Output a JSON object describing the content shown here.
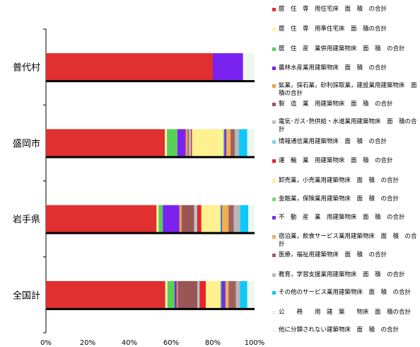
{
  "chart_data": {
    "type": "bar",
    "orientation": "horizontal",
    "stacked": "percent",
    "categories": [
      "普代村",
      "盛岡市",
      "岩手県",
      "全国計"
    ],
    "xlim": [
      0,
      100
    ],
    "x_ticks": [
      "0%",
      "20%",
      "40%",
      "60%",
      "80%",
      "100%"
    ],
    "grid": false,
    "legend_position": "right",
    "series": [
      {
        "name": "居　住　専　用住宅床　面　積　の合計",
        "color": "#E0302F",
        "values": [
          80.0,
          57.0,
          53.0,
          57.5
        ]
      },
      {
        "name": "居　住　専　用準住宅床　面　積の合計",
        "color": "#FFF2A8",
        "values": [
          0,
          1.0,
          1.0,
          1.0
        ]
      },
      {
        "name": "居　住　産　業併用建築物床　面　積　の合計",
        "color": "#58D058",
        "values": [
          0,
          5.0,
          2.0,
          3.5
        ]
      },
      {
        "name": "農林水産業用建築物床　面　積　の合計",
        "color": "#7A22F0",
        "values": [
          14.5,
          4.0,
          8.0,
          1.0
        ]
      },
      {
        "name": "鉱業，採石業，砂利採取業，建設業用建築物床　面　積の合計",
        "color": "#F2A040",
        "values": [
          0,
          1.0,
          1.0,
          0.5
        ]
      },
      {
        "name": "製　造　業　用建築物床　面　積　の合計",
        "color": "#9A5555",
        "values": [
          0,
          0.5,
          6.0,
          9.5
        ]
      },
      {
        "name": "電気･ガス･熱供給・水道業用建築物床　面　積の合計",
        "color": "#C0C0C0",
        "values": [
          0,
          0.5,
          1.0,
          0.5
        ]
      },
      {
        "name": "情報通信業用建築物床　面　積　の合計",
        "color": "#80D0F0",
        "values": [
          0,
          0.5,
          0.5,
          0.5
        ]
      },
      {
        "name": "運　輸　業　用建築物床　面　積　の合計",
        "color": "#EE2222",
        "values": [
          0,
          0.5,
          2.0,
          3.0
        ]
      },
      {
        "name": "卸売業，小売業用建築物床　面　積　の合計",
        "color": "#FFF090",
        "values": [
          0,
          15.0,
          9.0,
          7.0
        ]
      },
      {
        "name": "金融業，保険業用建築物床　面　積　の合計",
        "color": "#70DC70",
        "values": [
          0,
          0.5,
          0.5,
          0.5
        ]
      },
      {
        "name": "不　動　産　業　用建築物床　面　積　の合計",
        "color": "#7030E8",
        "values": [
          0,
          1.0,
          0.5,
          2.0
        ]
      },
      {
        "name": "宿泊業，飲食サービス業用建築物床　面　積　の合計",
        "color": "#F0B050",
        "values": [
          0,
          2.0,
          3.0,
          1.5
        ]
      },
      {
        "name": "医療，福祉用建築物床　面　積　の合計",
        "color": "#A06060",
        "values": [
          0,
          2.0,
          2.5,
          3.5
        ]
      },
      {
        "name": "教育，学習支援業用建築物床　面　積　の合計",
        "color": "#B8B8B8",
        "values": [
          0,
          2.0,
          3.0,
          2.0
        ]
      },
      {
        "name": "その他のサービス業用建築物床　面　積　の合計",
        "color": "#10C8F8",
        "values": [
          0,
          4.0,
          4.0,
          3.5
        ]
      },
      {
        "name": "公　　務　　用　建　築　　物床　面　積の合計",
        "color": "#E8F4FA",
        "values": [
          0,
          0.5,
          1.0,
          0.5
        ]
      },
      {
        "name": "他に分類されない建築物床　面　積　の合計",
        "color": "#EEF8EE",
        "values": [
          5.5,
          3.0,
          2.0,
          3.0
        ]
      }
    ]
  }
}
